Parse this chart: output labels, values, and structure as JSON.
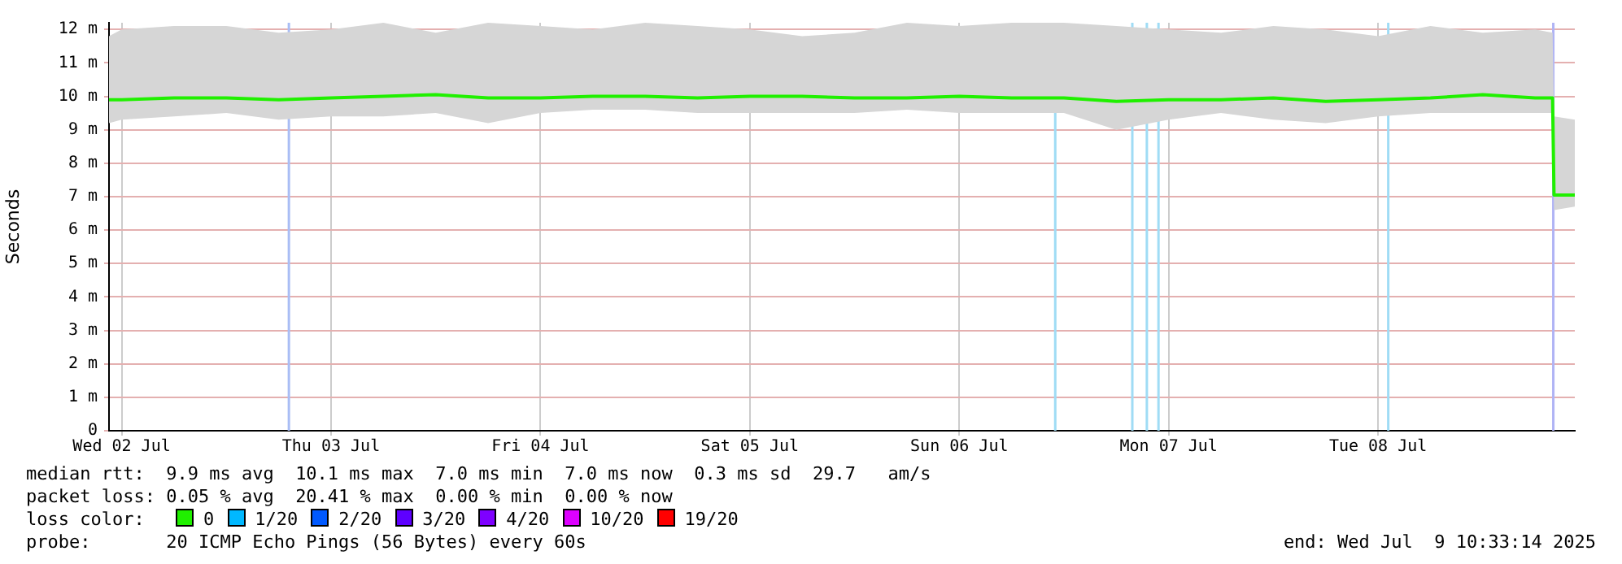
{
  "chart_data": {
    "type": "line",
    "ylabel": "Seconds",
    "x": [
      "2025-07-02T10:33",
      "2025-07-02T12:00",
      "2025-07-02T18:00",
      "2025-07-03T00:00",
      "2025-07-03T06:00",
      "2025-07-03T12:00",
      "2025-07-03T18:00",
      "2025-07-04T00:00",
      "2025-07-04T06:00",
      "2025-07-04T12:00",
      "2025-07-04T18:00",
      "2025-07-05T00:00",
      "2025-07-05T06:00",
      "2025-07-05T12:00",
      "2025-07-05T18:00",
      "2025-07-06T00:00",
      "2025-07-06T06:00",
      "2025-07-06T12:00",
      "2025-07-06T18:00",
      "2025-07-07T00:00",
      "2025-07-07T06:00",
      "2025-07-07T12:00",
      "2025-07-07T18:00",
      "2025-07-08T00:00",
      "2025-07-08T06:00",
      "2025-07-08T12:00",
      "2025-07-08T18:00",
      "2025-07-09T00:00",
      "2025-07-09T06:00",
      "2025-07-09T08:00",
      "2025-07-09T08:10",
      "2025-07-09T10:33"
    ],
    "series": [
      {
        "name": "0",
        "color": "#20f000",
        "values": [
          9.9,
          9.9,
          9.95,
          9.95,
          9.9,
          9.95,
          10.0,
          10.05,
          9.95,
          9.95,
          10.0,
          10.0,
          9.95,
          10.0,
          10.0,
          9.95,
          9.95,
          10.0,
          9.95,
          9.95,
          9.85,
          9.9,
          9.9,
          9.95,
          9.85,
          9.9,
          9.95,
          10.05,
          9.95,
          9.95,
          7.05,
          7.05
        ],
        "lower": [
          9.2,
          9.3,
          9.4,
          9.5,
          9.3,
          9.4,
          9.4,
          9.5,
          9.2,
          9.5,
          9.6,
          9.6,
          9.5,
          9.5,
          9.5,
          9.5,
          9.6,
          9.5,
          9.5,
          9.5,
          9.0,
          9.3,
          9.5,
          9.3,
          9.2,
          9.4,
          9.5,
          9.5,
          9.5,
          9.5,
          6.6,
          6.7
        ],
        "upper": [
          11.8,
          12.0,
          12.1,
          12.1,
          11.9,
          12.0,
          12.2,
          11.9,
          12.2,
          12.1,
          12.0,
          12.2,
          12.1,
          12.0,
          11.8,
          11.9,
          12.2,
          12.1,
          12.2,
          12.2,
          12.1,
          12.0,
          11.9,
          12.1,
          12.0,
          11.8,
          12.1,
          11.9,
          12.0,
          11.9,
          9.4,
          9.3
        ]
      },
      {
        "name": "1/20",
        "color": "#00b8ff",
        "values": [
          null,
          null,
          null,
          null,
          null,
          null,
          null,
          null,
          null,
          null,
          null,
          null,
          null,
          null,
          null,
          null,
          null,
          null,
          null,
          null,
          null,
          null,
          null,
          null,
          null,
          null,
          null,
          null,
          null,
          null,
          null,
          null
        ]
      },
      {
        "name": "2/20",
        "color": "#0059ff",
        "values": [
          null,
          null,
          null,
          null,
          null,
          null,
          null,
          null,
          null,
          null,
          null,
          null,
          null,
          null,
          null,
          null,
          null,
          null,
          null,
          null,
          null,
          null,
          null,
          null,
          null,
          null,
          null,
          null,
          null,
          null,
          null,
          null
        ]
      },
      {
        "name": "3/20",
        "color": "#5e00ff",
        "values": [
          null,
          null,
          null,
          null,
          null,
          null,
          null,
          null,
          null,
          null,
          null,
          null,
          null,
          null,
          null,
          null,
          null,
          null,
          null,
          null,
          null,
          null,
          null,
          null,
          null,
          null,
          null,
          null,
          null,
          null,
          null,
          null
        ]
      },
      {
        "name": "4/20",
        "color": "#7e00ff",
        "values": [
          null,
          null,
          null,
          null,
          null,
          null,
          null,
          null,
          null,
          null,
          null,
          null,
          null,
          null,
          null,
          null,
          null,
          null,
          null,
          null,
          null,
          null,
          null,
          null,
          null,
          null,
          null,
          null,
          null,
          null,
          null,
          null
        ]
      },
      {
        "name": "10/20",
        "color": "#dd00ff",
        "values": [
          null,
          null,
          null,
          null,
          null,
          null,
          null,
          null,
          null,
          null,
          null,
          null,
          null,
          null,
          null,
          null,
          null,
          null,
          null,
          null,
          null,
          null,
          null,
          null,
          null,
          null,
          null,
          null,
          null,
          null,
          null,
          null
        ]
      },
      {
        "name": "19/20",
        "color": "#ff0000",
        "values": [
          null,
          null,
          null,
          null,
          null,
          null,
          null,
          null,
          null,
          null,
          null,
          null,
          null,
          null,
          null,
          null,
          null,
          null,
          null,
          null,
          null,
          null,
          null,
          null,
          null,
          null,
          null,
          null,
          null,
          null,
          null,
          null
        ]
      }
    ],
    "xlim": [
      "2025-07-02T10:33",
      "2025-07-09T10:33"
    ],
    "xticks": [
      {
        "value": "2025-07-02T12:00",
        "label": "Wed 02 Jul"
      },
      {
        "value": "2025-07-03T12:00",
        "label": "Thu 03 Jul"
      },
      {
        "value": "2025-07-04T12:00",
        "label": "Fri 04 Jul"
      },
      {
        "value": "2025-07-05T12:00",
        "label": "Sat 05 Jul"
      },
      {
        "value": "2025-07-06T12:00",
        "label": "Sun 06 Jul"
      },
      {
        "value": "2025-07-07T12:00",
        "label": "Mon 07 Jul"
      },
      {
        "value": "2025-07-08T12:00",
        "label": "Tue 08 Jul"
      }
    ],
    "ylim": [
      0,
      12.2
    ],
    "yticks": [
      {
        "value": 0,
        "label": "0"
      },
      {
        "value": 1,
        "label": "1 m"
      },
      {
        "value": 2,
        "label": "2 m"
      },
      {
        "value": 3,
        "label": "3 m"
      },
      {
        "value": 4,
        "label": "4 m"
      },
      {
        "value": 5,
        "label": "5 m"
      },
      {
        "value": 6,
        "label": "6 m"
      },
      {
        "value": 7,
        "label": "7 m"
      },
      {
        "value": 8,
        "label": "8 m"
      },
      {
        "value": 9,
        "label": "9 m"
      },
      {
        "value": 10,
        "label": "10 m"
      },
      {
        "value": 11,
        "label": "11 m"
      },
      {
        "value": 12,
        "label": "12 m"
      }
    ],
    "ref_lines": [
      {
        "axis": "x",
        "value": "2025-07-03T07:10",
        "color": "#a9bdf5"
      },
      {
        "axis": "x",
        "value": "2025-07-06T23:00",
        "color": "#9fdcf5"
      },
      {
        "axis": "x",
        "value": "2025-07-07T07:50",
        "color": "#9fdcf5"
      },
      {
        "axis": "x",
        "value": "2025-07-07T09:30",
        "color": "#9fdcf5"
      },
      {
        "axis": "x",
        "value": "2025-07-07T10:50",
        "color": "#9fdcf5"
      },
      {
        "axis": "x",
        "value": "2025-07-08T13:10",
        "color": "#9fdcf5"
      },
      {
        "axis": "x",
        "value": "2025-07-09T08:05",
        "color": "#b0b4f5"
      }
    ],
    "grid": true,
    "legend": "bottom",
    "legend_title": "loss color:",
    "marker": "none",
    "line_style": "solid",
    "annotations": [
      "median rtt:  9.9 ms avg  10.1 ms max  7.0 ms min  7.0 ms now  0.3 ms sd  29.7   am/s",
      "packet loss: 0.05 % avg  20.41 % max  0.00 % min  0.00 % now",
      "probe:       20 ICMP Echo Pings (56 Bytes) every 60s",
      "end: Wed Jul  9 10:33:14 2025"
    ]
  }
}
